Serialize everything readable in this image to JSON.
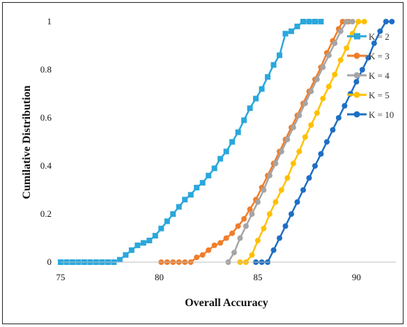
{
  "chart_data": {
    "type": "line",
    "title": "",
    "xlabel": "Overall Accuracy",
    "ylabel": "Cumilative Distribution",
    "xlim": [
      75,
      92
    ],
    "ylim": [
      0,
      1
    ],
    "x_ticks": [
      "75",
      "80",
      "85",
      "90"
    ],
    "x_tick_values": [
      75,
      80,
      85,
      90
    ],
    "y_ticks": [
      "0",
      "0.2",
      "0.4",
      "0.6",
      "0.8",
      "1"
    ],
    "y_tick_values": [
      0,
      0.2,
      0.4,
      0.6,
      0.8,
      1
    ],
    "grid": false,
    "legend_position": "right",
    "series": [
      {
        "name": "K = 2",
        "color": "#2aa7dc",
        "marker": "square",
        "points": [
          [
            75.0,
            0
          ],
          [
            75.3,
            0
          ],
          [
            75.6,
            0
          ],
          [
            75.9,
            0
          ],
          [
            76.2,
            0
          ],
          [
            76.5,
            0
          ],
          [
            76.8,
            0
          ],
          [
            77.1,
            0
          ],
          [
            77.4,
            0
          ],
          [
            77.7,
            0
          ],
          [
            78.0,
            0.01
          ],
          [
            78.3,
            0.03
          ],
          [
            78.6,
            0.05
          ],
          [
            78.9,
            0.07
          ],
          [
            79.2,
            0.08
          ],
          [
            79.5,
            0.09
          ],
          [
            79.8,
            0.11
          ],
          [
            80.1,
            0.14
          ],
          [
            80.4,
            0.17
          ],
          [
            80.7,
            0.2
          ],
          [
            81.0,
            0.23
          ],
          [
            81.3,
            0.26
          ],
          [
            81.6,
            0.28
          ],
          [
            81.9,
            0.31
          ],
          [
            82.2,
            0.33
          ],
          [
            82.5,
            0.36
          ],
          [
            82.8,
            0.39
          ],
          [
            83.1,
            0.43
          ],
          [
            83.4,
            0.46
          ],
          [
            83.7,
            0.5
          ],
          [
            84.0,
            0.54
          ],
          [
            84.3,
            0.59
          ],
          [
            84.6,
            0.64
          ],
          [
            84.9,
            0.68
          ],
          [
            85.2,
            0.72
          ],
          [
            85.5,
            0.77
          ],
          [
            85.8,
            0.82
          ],
          [
            86.1,
            0.86
          ],
          [
            86.4,
            0.95
          ],
          [
            86.7,
            0.96
          ],
          [
            87.0,
            0.98
          ],
          [
            87.3,
            1
          ],
          [
            87.6,
            1
          ],
          [
            87.9,
            1
          ],
          [
            88.2,
            1
          ]
        ]
      },
      {
        "name": "K = 3",
        "color": "#f07d2a",
        "marker": "circle",
        "points": [
          [
            80.1,
            0
          ],
          [
            80.4,
            0
          ],
          [
            80.7,
            0
          ],
          [
            81.0,
            0
          ],
          [
            81.3,
            0
          ],
          [
            81.6,
            0
          ],
          [
            81.9,
            0.02
          ],
          [
            82.2,
            0.03
          ],
          [
            82.5,
            0.05
          ],
          [
            82.8,
            0.07
          ],
          [
            83.1,
            0.08
          ],
          [
            83.4,
            0.1
          ],
          [
            83.7,
            0.12
          ],
          [
            84.0,
            0.15
          ],
          [
            84.3,
            0.18
          ],
          [
            84.6,
            0.22
          ],
          [
            84.9,
            0.26
          ],
          [
            85.2,
            0.31
          ],
          [
            85.5,
            0.36
          ],
          [
            85.8,
            0.41
          ],
          [
            86.1,
            0.46
          ],
          [
            86.4,
            0.51
          ],
          [
            86.7,
            0.56
          ],
          [
            87.0,
            0.61
          ],
          [
            87.3,
            0.66
          ],
          [
            87.6,
            0.71
          ],
          [
            87.9,
            0.76
          ],
          [
            88.2,
            0.81
          ],
          [
            88.5,
            0.87
          ],
          [
            88.8,
            0.92
          ],
          [
            89.1,
            0.97
          ],
          [
            89.3,
            1
          ],
          [
            89.6,
            1
          ]
        ]
      },
      {
        "name": "K = 4",
        "color": "#a5a5a5",
        "marker": "circle",
        "points": [
          [
            83.5,
            0
          ],
          [
            83.8,
            0.04
          ],
          [
            84.1,
            0.1
          ],
          [
            84.4,
            0.15
          ],
          [
            84.7,
            0.2
          ],
          [
            85.0,
            0.25
          ],
          [
            85.3,
            0.3
          ],
          [
            85.6,
            0.36
          ],
          [
            85.9,
            0.41
          ],
          [
            86.2,
            0.46
          ],
          [
            86.5,
            0.51
          ],
          [
            86.8,
            0.56
          ],
          [
            87.1,
            0.61
          ],
          [
            87.4,
            0.66
          ],
          [
            87.7,
            0.71
          ],
          [
            88.0,
            0.76
          ],
          [
            88.3,
            0.81
          ],
          [
            88.6,
            0.86
          ],
          [
            88.9,
            0.91
          ],
          [
            89.2,
            0.96
          ],
          [
            89.5,
            1
          ],
          [
            89.8,
            1
          ]
        ]
      },
      {
        "name": "K = 5",
        "color": "#ffc000",
        "marker": "circle",
        "points": [
          [
            84.1,
            0
          ],
          [
            84.4,
            0
          ],
          [
            84.7,
            0.03
          ],
          [
            85.0,
            0.09
          ],
          [
            85.3,
            0.14
          ],
          [
            85.6,
            0.2
          ],
          [
            85.9,
            0.25
          ],
          [
            86.2,
            0.3
          ],
          [
            86.5,
            0.35
          ],
          [
            86.8,
            0.41
          ],
          [
            87.1,
            0.46
          ],
          [
            87.4,
            0.52
          ],
          [
            87.7,
            0.57
          ],
          [
            88.0,
            0.62
          ],
          [
            88.3,
            0.68
          ],
          [
            88.6,
            0.73
          ],
          [
            88.9,
            0.78
          ],
          [
            89.2,
            0.84
          ],
          [
            89.5,
            0.89
          ],
          [
            89.8,
            0.95
          ],
          [
            90.1,
            1
          ],
          [
            90.4,
            1
          ]
        ]
      },
      {
        "name": "K = 10",
        "color": "#1f6fc4",
        "marker": "circle",
        "points": [
          [
            84.9,
            0
          ],
          [
            85.2,
            0
          ],
          [
            85.5,
            0
          ],
          [
            85.8,
            0.05
          ],
          [
            86.1,
            0.1
          ],
          [
            86.4,
            0.15
          ],
          [
            86.7,
            0.2
          ],
          [
            87.0,
            0.25
          ],
          [
            87.3,
            0.3
          ],
          [
            87.6,
            0.35
          ],
          [
            87.9,
            0.4
          ],
          [
            88.2,
            0.45
          ],
          [
            88.5,
            0.5
          ],
          [
            88.8,
            0.55
          ],
          [
            89.1,
            0.6
          ],
          [
            89.4,
            0.65
          ],
          [
            89.7,
            0.7
          ],
          [
            90.0,
            0.75
          ],
          [
            90.3,
            0.8
          ],
          [
            90.6,
            0.85
          ],
          [
            90.9,
            0.91
          ],
          [
            91.2,
            0.96
          ],
          [
            91.5,
            1
          ],
          [
            91.8,
            1
          ]
        ]
      }
    ]
  }
}
